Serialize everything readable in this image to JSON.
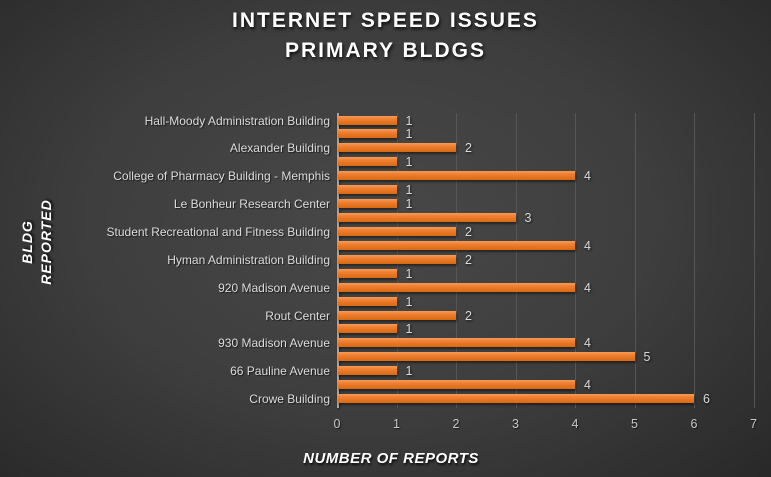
{
  "title": {
    "line1": "INTERNET SPEED ISSUES",
    "line2": "PRIMARY BLDGS"
  },
  "chart_data": {
    "type": "bar",
    "orientation": "horizontal",
    "title": "INTERNET SPEED ISSUES PRIMARY BLDGS",
    "xlabel": "NUMBER OF REPORTS",
    "ylabel": "BLDG REPORTED",
    "ylabel_lines": [
      "BLDG",
      "REPORTED"
    ],
    "xlim": [
      0,
      7
    ],
    "xticks": [
      0,
      1,
      2,
      3,
      4,
      5,
      6,
      7
    ],
    "grid": true,
    "legend": false,
    "data_labels": true,
    "note": "Category axis shows every other label; rows with empty label have no visible axis text",
    "bars": [
      {
        "label": "Hall-Moody Administration Building",
        "value": 1
      },
      {
        "label": "",
        "value": 1
      },
      {
        "label": "Alexander Building",
        "value": 2
      },
      {
        "label": "",
        "value": 1
      },
      {
        "label": "College of Pharmacy Building - Memphis",
        "value": 4
      },
      {
        "label": "",
        "value": 1
      },
      {
        "label": "Le Bonheur Research Center",
        "value": 1
      },
      {
        "label": "",
        "value": 3
      },
      {
        "label": "Student Recreational and Fitness Building",
        "value": 2
      },
      {
        "label": "",
        "value": 4
      },
      {
        "label": "Hyman Administration Building",
        "value": 2
      },
      {
        "label": "",
        "value": 1
      },
      {
        "label": "920 Madison Avenue",
        "value": 4
      },
      {
        "label": "",
        "value": 1
      },
      {
        "label": "Rout Center",
        "value": 2
      },
      {
        "label": "",
        "value": 1
      },
      {
        "label": "930 Madison Avenue",
        "value": 4
      },
      {
        "label": "",
        "value": 5
      },
      {
        "label": "66 Pauline Avenue",
        "value": 1
      },
      {
        "label": "",
        "value": 4
      },
      {
        "label": "Crowe Building",
        "value": 6
      }
    ],
    "colors": {
      "bar": "#ED7D31",
      "bar_highlight": "#F79B53",
      "bar_dark_edge": "#D96A10",
      "background_center": "#484848",
      "background_edge": "#232323",
      "title_text": "#FFFFFF",
      "category_text": "#DCDCDC",
      "value_label_text": "#D9D9D9",
      "tick_text": "#C8C8C8",
      "gridline": "#565656",
      "axis_line": "#A6A6A6"
    }
  }
}
